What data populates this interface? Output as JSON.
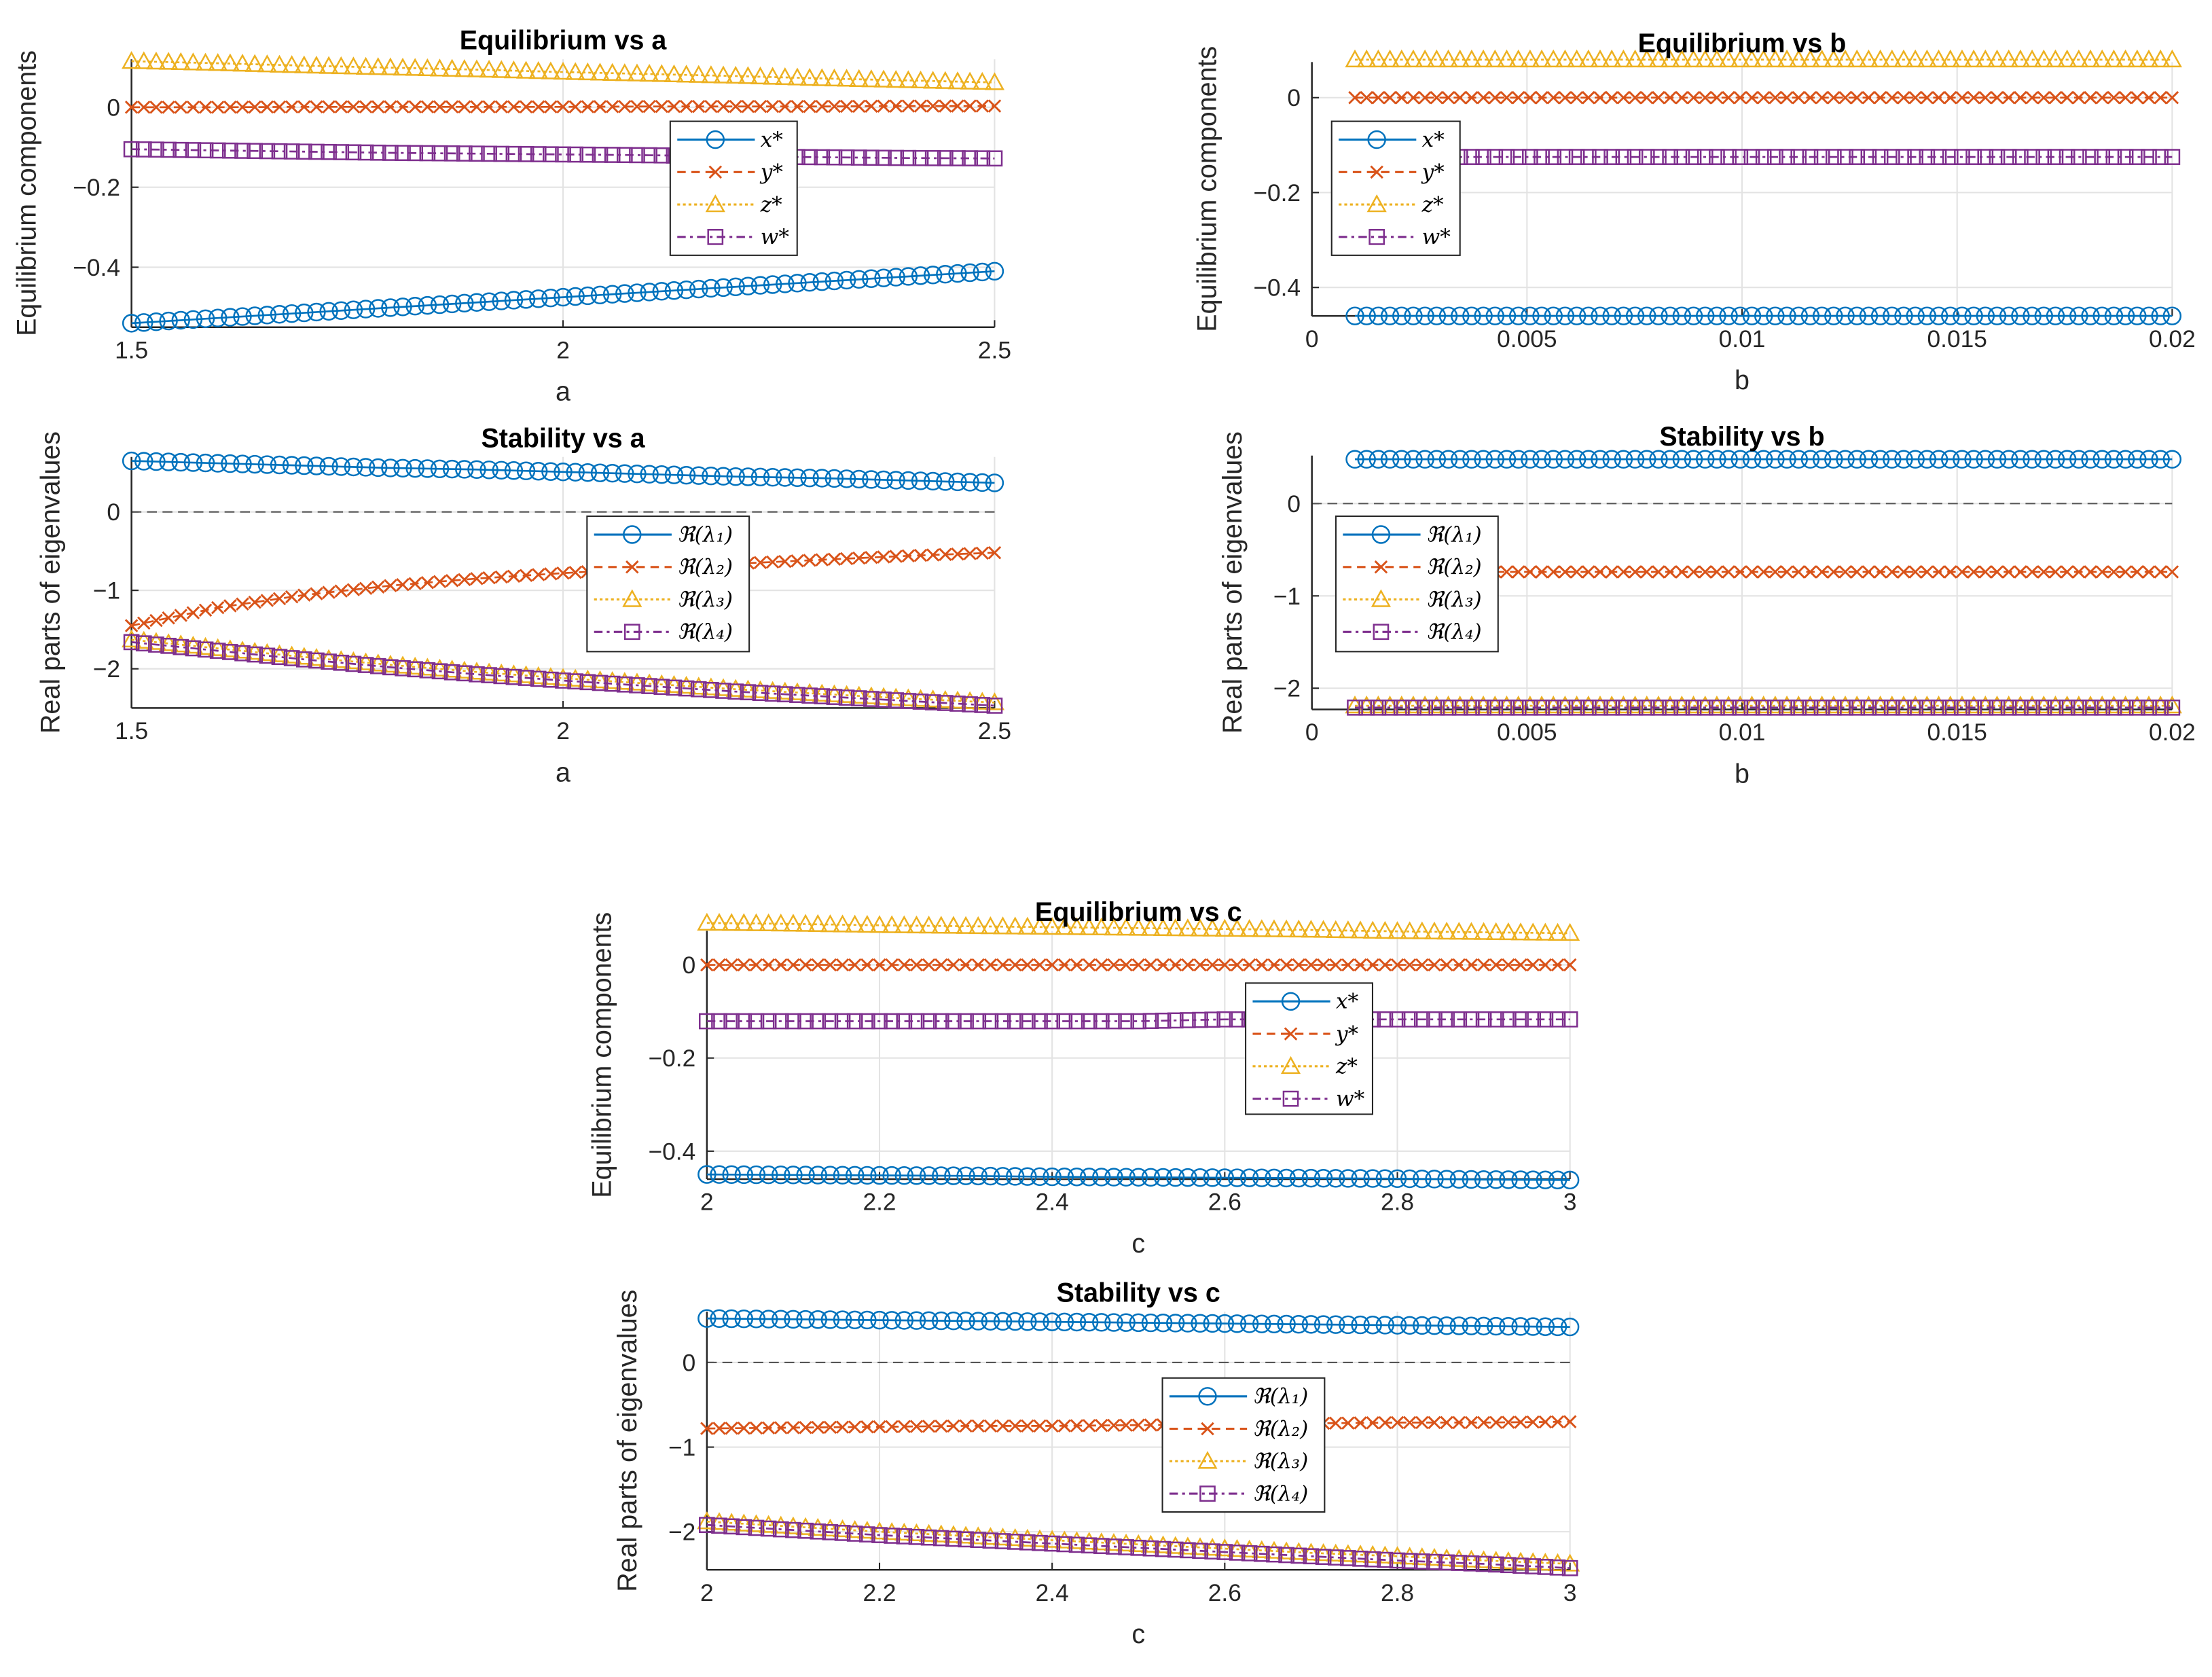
{
  "colors": {
    "s1": "#0072BD",
    "s2": "#D95319",
    "s3": "#EDB120",
    "s4": "#7E2F8E",
    "grid": "#e3e3e3",
    "axis": "#262626",
    "zero": "#555555"
  },
  "chart_data": [
    {
      "type": "line",
      "title": "Equilibrium vs a",
      "xlabel": "a",
      "ylabel": "Equilibrium components",
      "xlim": [
        1.5,
        2.5
      ],
      "ylim": [
        -0.55,
        0.12
      ],
      "grid": true,
      "legend": "center-right",
      "xticks": [
        1.5,
        2,
        2.5
      ],
      "xtick_labels": [
        "1.5",
        "2",
        "2.5"
      ],
      "yticks": [
        0,
        -0.2,
        -0.4
      ],
      "ytick_labels": [
        "0",
        "−0.2",
        "−0.4"
      ],
      "x": [
        1.5,
        1.6,
        1.7,
        1.8,
        1.9,
        2.0,
        2.1,
        2.2,
        2.3,
        2.4,
        2.5
      ],
      "series": [
        {
          "name": "x*",
          "values": [
            -0.54,
            -0.527,
            -0.514,
            -0.501,
            -0.488,
            -0.475,
            -0.462,
            -0.449,
            -0.436,
            -0.423,
            -0.41
          ]
        },
        {
          "name": "y*",
          "values": [
            0.0,
            0.0,
            0.001,
            0.001,
            0.001,
            0.001,
            0.002,
            0.002,
            0.002,
            0.003,
            0.003
          ]
        },
        {
          "name": "z*",
          "values": [
            0.115,
            0.11,
            0.104,
            0.099,
            0.094,
            0.088,
            0.083,
            0.078,
            0.072,
            0.067,
            0.062
          ]
        },
        {
          "name": "w*",
          "values": [
            -0.105,
            -0.108,
            -0.111,
            -0.114,
            -0.116,
            -0.118,
            -0.12,
            -0.123,
            -0.125,
            -0.127,
            -0.128
          ]
        }
      ]
    },
    {
      "type": "line",
      "title": "Stability vs a",
      "xlabel": "a",
      "ylabel": "Real parts of eigenvalues",
      "xlim": [
        1.5,
        2.5
      ],
      "ylim": [
        -2.5,
        0.7
      ],
      "grid": true,
      "legend": "center",
      "zero_line": true,
      "xticks": [
        1.5,
        2,
        2.5
      ],
      "xtick_labels": [
        "1.5",
        "2",
        "2.5"
      ],
      "yticks": [
        0,
        -1,
        -2
      ],
      "ytick_labels": [
        "0",
        "−1",
        "−2"
      ],
      "x": [
        1.5,
        1.6,
        1.7,
        1.8,
        1.9,
        2.0,
        2.1,
        2.2,
        2.3,
        2.4,
        2.5
      ],
      "series": [
        {
          "name": "ℜ(λ₁)",
          "values": [
            0.65,
            0.62,
            0.59,
            0.56,
            0.54,
            0.51,
            0.48,
            0.45,
            0.43,
            0.4,
            0.37
          ]
        },
        {
          "name": "ℜ(λ₂)",
          "values": [
            -1.45,
            -1.22,
            -1.06,
            -0.94,
            -0.85,
            -0.78,
            -0.72,
            -0.66,
            -0.61,
            -0.56,
            -0.52
          ]
        },
        {
          "name": "ℜ(λ₃)",
          "values": [
            -1.63,
            -1.74,
            -1.85,
            -1.95,
            -2.04,
            -2.12,
            -2.19,
            -2.26,
            -2.32,
            -2.38,
            -2.43
          ]
        },
        {
          "name": "ℜ(λ₄)",
          "values": [
            -1.66,
            -1.77,
            -1.88,
            -1.98,
            -2.07,
            -2.15,
            -2.22,
            -2.29,
            -2.35,
            -2.41,
            -2.47
          ]
        }
      ]
    },
    {
      "type": "line",
      "title": "Equilibrium vs b",
      "xlabel": "b",
      "ylabel": "Equilibrium components",
      "xlim": [
        0,
        0.02
      ],
      "ylim": [
        -0.46,
        0.075
      ],
      "grid": true,
      "legend": "top-left",
      "xticks": [
        0,
        0.005,
        0.01,
        0.015,
        0.02
      ],
      "xtick_labels": [
        "0",
        "0.005",
        "0.01",
        "0.015",
        "0.02"
      ],
      "yticks": [
        0,
        -0.2,
        -0.4
      ],
      "ytick_labels": [
        "0",
        "−0.2",
        "−0.4"
      ],
      "x": [
        0.001,
        0.0029,
        0.0048,
        0.0067,
        0.0086,
        0.0105,
        0.0124,
        0.0143,
        0.0162,
        0.0181,
        0.02
      ],
      "series": [
        {
          "name": "x*",
          "values": [
            -0.46,
            -0.46,
            -0.46,
            -0.46,
            -0.46,
            -0.46,
            -0.46,
            -0.46,
            -0.46,
            -0.46,
            -0.46
          ]
        },
        {
          "name": "y*",
          "values": [
            0.0,
            0.0,
            0.0,
            0.0,
            0.0,
            0.0,
            0.0,
            0.0,
            0.0,
            0.0,
            0.0
          ]
        },
        {
          "name": "z*",
          "values": [
            0.08,
            0.08,
            0.08,
            0.08,
            0.08,
            0.08,
            0.08,
            0.08,
            0.08,
            0.08,
            0.08
          ]
        },
        {
          "name": "w*",
          "values": [
            -0.125,
            -0.125,
            -0.125,
            -0.125,
            -0.125,
            -0.125,
            -0.125,
            -0.125,
            -0.125,
            -0.125,
            -0.125
          ]
        }
      ]
    },
    {
      "type": "line",
      "title": "Stability vs b",
      "xlabel": "b",
      "ylabel": "Real parts of eigenvalues",
      "xlim": [
        0,
        0.02
      ],
      "ylim": [
        -2.23,
        0.52
      ],
      "grid": true,
      "legend": "top-left",
      "zero_line": true,
      "xticks": [
        0,
        0.005,
        0.01,
        0.015,
        0.02
      ],
      "xtick_labels": [
        "0",
        "0.005",
        "0.01",
        "0.015",
        "0.02"
      ],
      "yticks": [
        0,
        -1,
        -2
      ],
      "ytick_labels": [
        "0",
        "−1",
        "−2"
      ],
      "x": [
        0.001,
        0.0029,
        0.0048,
        0.0067,
        0.0086,
        0.0105,
        0.0124,
        0.0143,
        0.0162,
        0.0181,
        0.02
      ],
      "series": [
        {
          "name": "ℜ(λ₁)",
          "values": [
            0.48,
            0.48,
            0.48,
            0.48,
            0.48,
            0.48,
            0.48,
            0.48,
            0.48,
            0.48,
            0.48
          ]
        },
        {
          "name": "ℜ(λ₂)",
          "values": [
            -0.74,
            -0.74,
            -0.74,
            -0.74,
            -0.74,
            -0.74,
            -0.74,
            -0.74,
            -0.74,
            -0.74,
            -0.74
          ]
        },
        {
          "name": "ℜ(λ₃)",
          "values": [
            -2.19,
            -2.19,
            -2.19,
            -2.19,
            -2.19,
            -2.19,
            -2.19,
            -2.19,
            -2.19,
            -2.19,
            -2.19
          ]
        },
        {
          "name": "ℜ(λ₄)",
          "values": [
            -2.21,
            -2.21,
            -2.21,
            -2.21,
            -2.21,
            -2.21,
            -2.21,
            -2.21,
            -2.21,
            -2.21,
            -2.21
          ]
        }
      ]
    },
    {
      "type": "line",
      "title": "Equilibrium vs c",
      "xlabel": "c",
      "ylabel": "Equilibrium components",
      "xlim": [
        2,
        3
      ],
      "ylim": [
        -0.46,
        0.073
      ],
      "grid": true,
      "legend": "center-right",
      "xticks": [
        2,
        2.2,
        2.4,
        2.6,
        2.8,
        3
      ],
      "xtick_labels": [
        "2",
        "2.2",
        "2.4",
        "2.6",
        "2.8",
        "3"
      ],
      "yticks": [
        0,
        -0.2,
        -0.4
      ],
      "ytick_labels": [
        "0",
        "−0.2",
        "−0.4"
      ],
      "x": [
        2.0,
        2.1,
        2.2,
        2.3,
        2.4,
        2.5,
        2.6,
        2.7,
        2.8,
        2.9,
        3.0
      ],
      "series": [
        {
          "name": "x*",
          "values": [
            -0.45,
            -0.451,
            -0.452,
            -0.453,
            -0.455,
            -0.456,
            -0.457,
            -0.458,
            -0.459,
            -0.461,
            -0.462
          ]
        },
        {
          "name": "y*",
          "values": [
            0.0,
            0.0,
            0.0,
            0.0,
            0.0,
            0.0,
            0.0,
            0.0,
            0.0,
            0.0,
            0.0
          ]
        },
        {
          "name": "z*",
          "values": [
            0.09,
            0.088,
            0.085,
            0.083,
            0.081,
            0.079,
            0.077,
            0.075,
            0.072,
            0.07,
            0.068
          ]
        },
        {
          "name": "w*",
          "values": [
            -0.121,
            -0.121,
            -0.121,
            -0.121,
            -0.121,
            -0.121,
            -0.117,
            -0.117,
            -0.117,
            -0.117,
            -0.117
          ]
        }
      ]
    },
    {
      "type": "line",
      "title": "Stability vs c",
      "xlabel": "c",
      "ylabel": "Real parts of eigenvalues",
      "xlim": [
        2,
        3
      ],
      "ylim": [
        -2.45,
        0.6
      ],
      "grid": true,
      "legend": "center",
      "zero_line": true,
      "xticks": [
        2,
        2.2,
        2.4,
        2.6,
        2.8,
        3
      ],
      "xtick_labels": [
        "2",
        "2.2",
        "2.4",
        "2.6",
        "2.8",
        "3"
      ],
      "yticks": [
        0,
        -1,
        -2
      ],
      "ytick_labels": [
        "0",
        "−1",
        "−2"
      ],
      "x": [
        2.0,
        2.1,
        2.2,
        2.3,
        2.4,
        2.5,
        2.6,
        2.7,
        2.8,
        2.9,
        3.0
      ],
      "series": [
        {
          "name": "ℜ(λ₁)",
          "values": [
            0.52,
            0.51,
            0.5,
            0.49,
            0.48,
            0.47,
            0.46,
            0.45,
            0.44,
            0.43,
            0.42
          ]
        },
        {
          "name": "ℜ(λ₂)",
          "values": [
            -0.78,
            -0.77,
            -0.76,
            -0.75,
            -0.75,
            -0.74,
            -0.73,
            -0.72,
            -0.71,
            -0.71,
            -0.7
          ]
        },
        {
          "name": "ℜ(λ₃)",
          "values": [
            -1.88,
            -1.94,
            -2.0,
            -2.05,
            -2.1,
            -2.15,
            -2.2,
            -2.25,
            -2.29,
            -2.34,
            -2.38
          ]
        },
        {
          "name": "ℜ(λ₄)",
          "values": [
            -1.92,
            -1.98,
            -2.04,
            -2.09,
            -2.14,
            -2.19,
            -2.24,
            -2.29,
            -2.34,
            -2.38,
            -2.43
          ]
        }
      ]
    }
  ]
}
